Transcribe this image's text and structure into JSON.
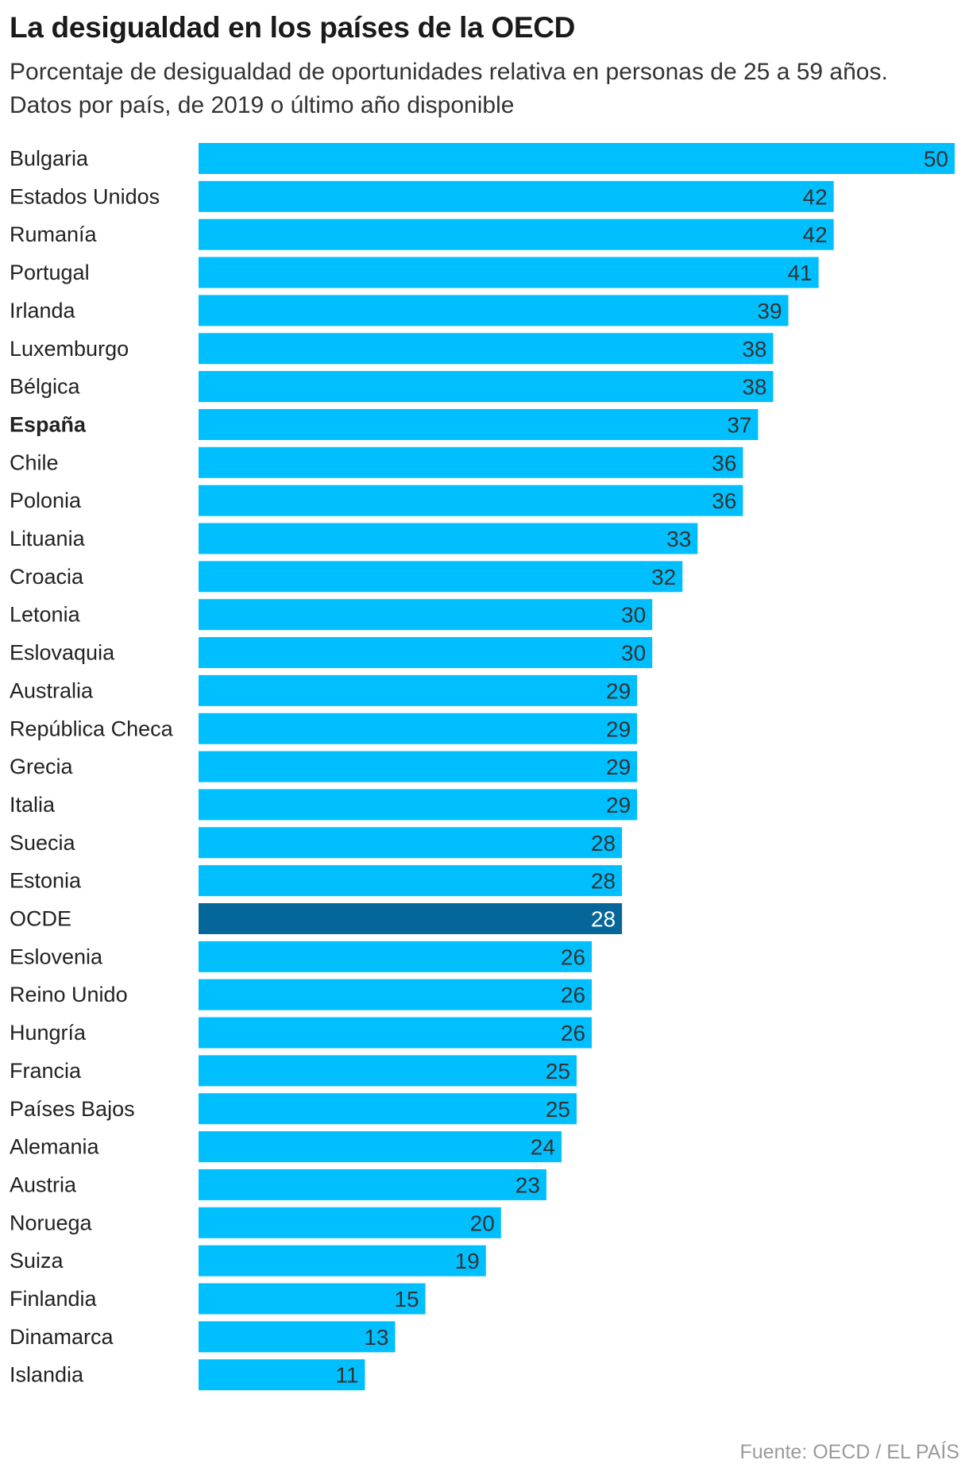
{
  "title": "La desigualdad en los países de la OECD",
  "subtitle": "Porcentaje de desigualdad de oportunidades relativa en personas de 25 a 59 años. Datos por país, de 2019 o último año disponible",
  "source": "Fuente: OECD / EL PAÍS",
  "colors": {
    "bar": "#00bfff",
    "highlight_bar": "#05669a",
    "value_text": "#333333",
    "highlight_value_text": "#ffffff",
    "label_text": "#222222"
  },
  "chart_data": {
    "type": "bar",
    "orientation": "horizontal",
    "xlim": [
      0,
      50
    ],
    "grid": false,
    "legend": "none",
    "bold_category": "España",
    "highlight_category": "OCDE",
    "categories": [
      "Bulgaria",
      "Estados Unidos",
      "Rumanía",
      "Portugal",
      "Irlanda",
      "Luxemburgo",
      "Bélgica",
      "España",
      "Chile",
      "Polonia",
      "Lituania",
      "Croacia",
      "Letonia",
      "Eslovaquia",
      "Australia",
      "República Checa",
      "Grecia",
      "Italia",
      "Suecia",
      "Estonia",
      "OCDE",
      "Eslovenia",
      "Reino Unido",
      "Hungría",
      "Francia",
      "Países Bajos",
      "Alemania",
      "Austria",
      "Noruega",
      "Suiza",
      "Finlandia",
      "Dinamarca",
      "Islandia"
    ],
    "values": [
      50,
      42,
      42,
      41,
      39,
      38,
      38,
      37,
      36,
      36,
      33,
      32,
      30,
      30,
      29,
      29,
      29,
      29,
      28,
      28,
      28,
      26,
      26,
      26,
      25,
      25,
      24,
      23,
      20,
      19,
      15,
      13,
      11
    ]
  }
}
